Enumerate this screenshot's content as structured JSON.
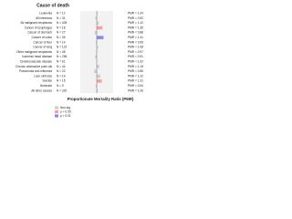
{
  "chart_data": {
    "type": "hbar",
    "title": "Cause of death",
    "xlabel": "Proportionate Mortality Ratio (PMR)",
    "categories": [
      "Leukemia",
      "All infections",
      "All malignant neoplasms",
      "Cancer of esophagus",
      "Cancer of stomach",
      "Cancer of colon",
      "Cancer of liver",
      "Cancer of lung",
      "Other malignant neoplasms",
      "Ischemic heart disease",
      "Cerebrovascular disease",
      "Chronic obstructive pulm dis",
      "Pneumonia and influenza",
      "Liver cirrhosis",
      "Suicide",
      "Homicide",
      "All other causes"
    ],
    "n_labels": [
      "N = 12",
      "N = 31",
      "N = 405",
      "N = 18",
      "N = 27",
      "N = 35",
      "N = 14",
      "N = 122",
      "N = 48",
      "N = 256",
      "N = 61",
      "N = 44",
      "N = 22",
      "N = 19",
      "N = 15",
      "N = 9",
      "N = 320"
    ],
    "values": [
      1.04,
      0.92,
      1.12,
      1.35,
      0.88,
      1.41,
      0.95,
      1.08,
      0.97,
      0.91,
      1.02,
      1.15,
      0.85,
      1.22,
      1.31,
      0.94,
      1.06
    ],
    "value_labels": [
      "PMR = 1.04",
      "PMR = 0.92",
      "PMR = 1.12",
      "PMR = 1.35",
      "PMR = 0.88",
      "PMR = 1.41",
      "PMR = 0.95",
      "PMR = 1.08",
      "PMR = 0.97",
      "PMR = 0.91",
      "PMR = 1.02",
      "PMR = 1.15",
      "PMR = 0.85",
      "PMR = 1.22",
      "PMR = 1.31",
      "PMR = 0.94",
      "PMR = 1.06"
    ],
    "colors": [
      "#cccccc",
      "#cccccc",
      "#cccccc",
      "#f4a0a8",
      "#cccccc",
      "#8888ee",
      "#cccccc",
      "#cccccc",
      "#cccccc",
      "#cccccc",
      "#cccccc",
      "#cccccc",
      "#cccccc",
      "#cccccc",
      "#f4a0a8",
      "#cccccc",
      "#cccccc"
    ],
    "reference": 1,
    "xlim": [
      0,
      2
    ],
    "legend": [
      {
        "name": "Non-sig",
        "color": "#cccccc"
      },
      {
        "name": "p < 0.05",
        "color": "#f4a0a8"
      },
      {
        "name": "p < 0.01",
        "color": "#8888ee"
      }
    ]
  }
}
